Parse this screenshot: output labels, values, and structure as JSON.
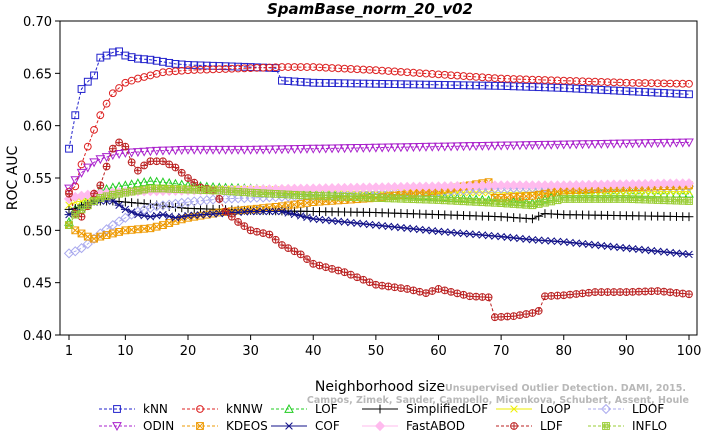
{
  "chart_data": {
    "type": "line",
    "title": "SpamBase_norm_20_v02",
    "xlabel": "Neighborhood size",
    "ylabel": "ROC AUC",
    "xlim": [
      1,
      100
    ],
    "ylim": [
      0.4,
      0.7
    ],
    "x_ticks": [
      1,
      10,
      20,
      30,
      40,
      50,
      60,
      70,
      80,
      90,
      100
    ],
    "y_ticks": [
      "0.40",
      "0.45",
      "0.50",
      "0.55",
      "0.60",
      "0.65",
      "0.70"
    ],
    "grid": false,
    "legend_position": "bottom",
    "watermark": {
      "line1": "Unsupervised Outlier Detection. DAMI, 2015.",
      "line2": "Campos, Zimek, Sander, Campello, Micenkova, Schubert, Assent, Houle"
    },
    "series": [
      {
        "name": "kNN",
        "color": "#2222cc",
        "marker": "square",
        "dashed": true,
        "points": [
          [
            1,
            0.578
          ],
          [
            2,
            0.61
          ],
          [
            3,
            0.635
          ],
          [
            4,
            0.642
          ],
          [
            5,
            0.648
          ],
          [
            6,
            0.665
          ],
          [
            7,
            0.667
          ],
          [
            8,
            0.67
          ],
          [
            9,
            0.671
          ],
          [
            10,
            0.667
          ],
          [
            12,
            0.664
          ],
          [
            14,
            0.663
          ],
          [
            16,
            0.661
          ],
          [
            18,
            0.659
          ],
          [
            20,
            0.658
          ],
          [
            25,
            0.657
          ],
          [
            30,
            0.656
          ],
          [
            34,
            0.655
          ],
          [
            35,
            0.643
          ],
          [
            40,
            0.641
          ],
          [
            50,
            0.64
          ],
          [
            60,
            0.639
          ],
          [
            70,
            0.638
          ],
          [
            80,
            0.636
          ],
          [
            90,
            0.633
          ],
          [
            100,
            0.63
          ]
        ]
      },
      {
        "name": "kNNW",
        "color": "#dd2222",
        "marker": "circle",
        "dashed": true,
        "points": [
          [
            1,
            0.537
          ],
          [
            2,
            0.542
          ],
          [
            3,
            0.563
          ],
          [
            4,
            0.58
          ],
          [
            5,
            0.596
          ],
          [
            6,
            0.61
          ],
          [
            7,
            0.621
          ],
          [
            8,
            0.631
          ],
          [
            9,
            0.636
          ],
          [
            10,
            0.641
          ],
          [
            12,
            0.645
          ],
          [
            14,
            0.648
          ],
          [
            16,
            0.651
          ],
          [
            18,
            0.652
          ],
          [
            20,
            0.653
          ],
          [
            25,
            0.654
          ],
          [
            30,
            0.655
          ],
          [
            35,
            0.656
          ],
          [
            40,
            0.656
          ],
          [
            50,
            0.653
          ],
          [
            60,
            0.649
          ],
          [
            70,
            0.645
          ],
          [
            80,
            0.643
          ],
          [
            90,
            0.641
          ],
          [
            100,
            0.64
          ]
        ]
      },
      {
        "name": "LOF",
        "color": "#22cc22",
        "marker": "triangle-up",
        "dashed": true,
        "points": [
          [
            1,
            0.508
          ],
          [
            2,
            0.52
          ],
          [
            3,
            0.525
          ],
          [
            4,
            0.53
          ],
          [
            5,
            0.535
          ],
          [
            6,
            0.538
          ],
          [
            8,
            0.541
          ],
          [
            10,
            0.543
          ],
          [
            12,
            0.545
          ],
          [
            14,
            0.547
          ],
          [
            16,
            0.546
          ],
          [
            20,
            0.543
          ],
          [
            25,
            0.541
          ],
          [
            30,
            0.54
          ],
          [
            40,
            0.537
          ],
          [
            50,
            0.535
          ],
          [
            60,
            0.532
          ],
          [
            70,
            0.528
          ],
          [
            75,
            0.526
          ],
          [
            80,
            0.535
          ],
          [
            90,
            0.535
          ],
          [
            100,
            0.535
          ]
        ]
      },
      {
        "name": "SimplifiedLOF",
        "color": "#000000",
        "marker": "plus",
        "dashed": false,
        "points": [
          [
            1,
            0.52
          ],
          [
            2,
            0.521
          ],
          [
            3,
            0.524
          ],
          [
            4,
            0.526
          ],
          [
            5,
            0.528
          ],
          [
            6,
            0.528
          ],
          [
            8,
            0.528
          ],
          [
            10,
            0.527
          ],
          [
            14,
            0.525
          ],
          [
            18,
            0.522
          ],
          [
            20,
            0.521
          ],
          [
            25,
            0.52
          ],
          [
            30,
            0.519
          ],
          [
            40,
            0.518
          ],
          [
            50,
            0.517
          ],
          [
            60,
            0.515
          ],
          [
            70,
            0.513
          ],
          [
            75,
            0.511
          ],
          [
            77,
            0.516
          ],
          [
            80,
            0.515
          ],
          [
            90,
            0.514
          ],
          [
            100,
            0.513
          ]
        ]
      },
      {
        "name": "LoOP",
        "color": "#eeee00",
        "marker": "x",
        "dashed": false,
        "points": [
          [
            1,
            0.524
          ],
          [
            2,
            0.527
          ],
          [
            3,
            0.528
          ],
          [
            5,
            0.532
          ],
          [
            8,
            0.535
          ],
          [
            10,
            0.537
          ],
          [
            15,
            0.54
          ],
          [
            20,
            0.54
          ],
          [
            30,
            0.539
          ],
          [
            40,
            0.538
          ],
          [
            50,
            0.537
          ],
          [
            60,
            0.536
          ],
          [
            70,
            0.536
          ],
          [
            80,
            0.537
          ],
          [
            90,
            0.537
          ],
          [
            100,
            0.537
          ]
        ]
      },
      {
        "name": "LDOF",
        "color": "#aaaaee",
        "marker": "diamond",
        "dashed": true,
        "points": [
          [
            1,
            0.478
          ],
          [
            2,
            0.48
          ],
          [
            3,
            0.483
          ],
          [
            4,
            0.487
          ],
          [
            5,
            0.492
          ],
          [
            6,
            0.497
          ],
          [
            8,
            0.505
          ],
          [
            10,
            0.512
          ],
          [
            12,
            0.518
          ],
          [
            15,
            0.523
          ],
          [
            20,
            0.527
          ],
          [
            25,
            0.53
          ],
          [
            30,
            0.531
          ],
          [
            40,
            0.533
          ],
          [
            50,
            0.535
          ],
          [
            60,
            0.537
          ],
          [
            70,
            0.54
          ],
          [
            80,
            0.541
          ],
          [
            90,
            0.541
          ],
          [
            100,
            0.542
          ]
        ]
      },
      {
        "name": "ODIN",
        "color": "#aa22cc",
        "marker": "triangle-down",
        "dashed": true,
        "points": [
          [
            1,
            0.54
          ],
          [
            2,
            0.548
          ],
          [
            3,
            0.555
          ],
          [
            4,
            0.56
          ],
          [
            5,
            0.565
          ],
          [
            6,
            0.568
          ],
          [
            8,
            0.572
          ],
          [
            10,
            0.574
          ],
          [
            15,
            0.576
          ],
          [
            20,
            0.577
          ],
          [
            30,
            0.577
          ],
          [
            40,
            0.578
          ],
          [
            50,
            0.579
          ],
          [
            60,
            0.58
          ],
          [
            70,
            0.581
          ],
          [
            80,
            0.582
          ],
          [
            90,
            0.583
          ],
          [
            100,
            0.584
          ]
        ]
      },
      {
        "name": "KDEOS",
        "color": "#ee9900",
        "marker": "square-x",
        "dashed": true,
        "points": [
          [
            1,
            0.505
          ],
          [
            2,
            0.5
          ],
          [
            3,
            0.497
          ],
          [
            4,
            0.494
          ],
          [
            5,
            0.492
          ],
          [
            6,
            0.494
          ],
          [
            8,
            0.497
          ],
          [
            10,
            0.5
          ],
          [
            12,
            0.501
          ],
          [
            14,
            0.502
          ],
          [
            16,
            0.505
          ],
          [
            18,
            0.509
          ],
          [
            20,
            0.512
          ],
          [
            25,
            0.517
          ],
          [
            30,
            0.52
          ],
          [
            35,
            0.523
          ],
          [
            40,
            0.527
          ],
          [
            50,
            0.531
          ],
          [
            60,
            0.538
          ],
          [
            68,
            0.546
          ],
          [
            69,
            0.531
          ],
          [
            70,
            0.531
          ],
          [
            75,
            0.533
          ],
          [
            80,
            0.538
          ],
          [
            90,
            0.541
          ],
          [
            100,
            0.543
          ]
        ]
      },
      {
        "name": "COF",
        "color": "#111188",
        "marker": "asterisk",
        "dashed": false,
        "points": [
          [
            1,
            0.515
          ],
          [
            2,
            0.518
          ],
          [
            3,
            0.521
          ],
          [
            4,
            0.524
          ],
          [
            5,
            0.527
          ],
          [
            6,
            0.528
          ],
          [
            8,
            0.528
          ],
          [
            10,
            0.52
          ],
          [
            12,
            0.515
          ],
          [
            14,
            0.513
          ],
          [
            16,
            0.515
          ],
          [
            18,
            0.512
          ],
          [
            20,
            0.514
          ],
          [
            25,
            0.516
          ],
          [
            30,
            0.518
          ],
          [
            35,
            0.518
          ],
          [
            40,
            0.511
          ],
          [
            50,
            0.505
          ],
          [
            60,
            0.499
          ],
          [
            70,
            0.494
          ],
          [
            75,
            0.491
          ],
          [
            80,
            0.489
          ],
          [
            90,
            0.483
          ],
          [
            100,
            0.477
          ]
        ]
      },
      {
        "name": "FastABOD",
        "color": "#ffbbee",
        "marker": "diamond-filled",
        "dashed": false,
        "points": [
          [
            1,
            0.53
          ],
          [
            2,
            0.532
          ],
          [
            5,
            0.535
          ],
          [
            10,
            0.537
          ],
          [
            20,
            0.538
          ],
          [
            30,
            0.539
          ],
          [
            40,
            0.54
          ],
          [
            50,
            0.541
          ],
          [
            60,
            0.542
          ],
          [
            70,
            0.543
          ],
          [
            80,
            0.543
          ],
          [
            90,
            0.544
          ],
          [
            100,
            0.545
          ]
        ]
      },
      {
        "name": "LDF",
        "color": "#bb2222",
        "marker": "circle-plus",
        "dashed": true,
        "points": [
          [
            1,
            0.535
          ],
          [
            2,
            0.516
          ],
          [
            3,
            0.513
          ],
          [
            4,
            0.523
          ],
          [
            5,
            0.535
          ],
          [
            6,
            0.543
          ],
          [
            7,
            0.561
          ],
          [
            8,
            0.578
          ],
          [
            9,
            0.584
          ],
          [
            10,
            0.58
          ],
          [
            11,
            0.565
          ],
          [
            12,
            0.557
          ],
          [
            13,
            0.562
          ],
          [
            14,
            0.566
          ],
          [
            15,
            0.566
          ],
          [
            16,
            0.566
          ],
          [
            17,
            0.563
          ],
          [
            18,
            0.56
          ],
          [
            20,
            0.55
          ],
          [
            22,
            0.541
          ],
          [
            24,
            0.538
          ],
          [
            25,
            0.53
          ],
          [
            26,
            0.518
          ],
          [
            28,
            0.508
          ],
          [
            30,
            0.5
          ],
          [
            33,
            0.496
          ],
          [
            35,
            0.486
          ],
          [
            38,
            0.477
          ],
          [
            40,
            0.468
          ],
          [
            45,
            0.46
          ],
          [
            50,
            0.448
          ],
          [
            55,
            0.444
          ],
          [
            58,
            0.44
          ],
          [
            60,
            0.444
          ],
          [
            65,
            0.437
          ],
          [
            68,
            0.436
          ],
          [
            69,
            0.417
          ],
          [
            72,
            0.418
          ],
          [
            75,
            0.421
          ],
          [
            76,
            0.423
          ],
          [
            77,
            0.437
          ],
          [
            80,
            0.438
          ],
          [
            85,
            0.441
          ],
          [
            90,
            0.441
          ],
          [
            95,
            0.442
          ],
          [
            100,
            0.439
          ]
        ]
      },
      {
        "name": "INFLO",
        "color": "#99cc33",
        "marker": "square-hash",
        "dashed": true,
        "points": [
          [
            1,
            0.505
          ],
          [
            2,
            0.515
          ],
          [
            3,
            0.52
          ],
          [
            4,
            0.524
          ],
          [
            5,
            0.528
          ],
          [
            6,
            0.531
          ],
          [
            8,
            0.534
          ],
          [
            10,
            0.536
          ],
          [
            12,
            0.538
          ],
          [
            14,
            0.54
          ],
          [
            16,
            0.54
          ],
          [
            20,
            0.539
          ],
          [
            25,
            0.538
          ],
          [
            30,
            0.536
          ],
          [
            40,
            0.533
          ],
          [
            50,
            0.531
          ],
          [
            60,
            0.529
          ],
          [
            70,
            0.526
          ],
          [
            75,
            0.524
          ],
          [
            80,
            0.53
          ],
          [
            90,
            0.53
          ],
          [
            100,
            0.528
          ]
        ]
      }
    ],
    "legend_order": [
      "kNN",
      "kNNW",
      "LOF",
      "SimplifiedLOF",
      "LoOP",
      "LDOF",
      "ODIN",
      "KDEOS",
      "COF",
      "FastABOD",
      "LDF",
      "INFLO"
    ]
  }
}
